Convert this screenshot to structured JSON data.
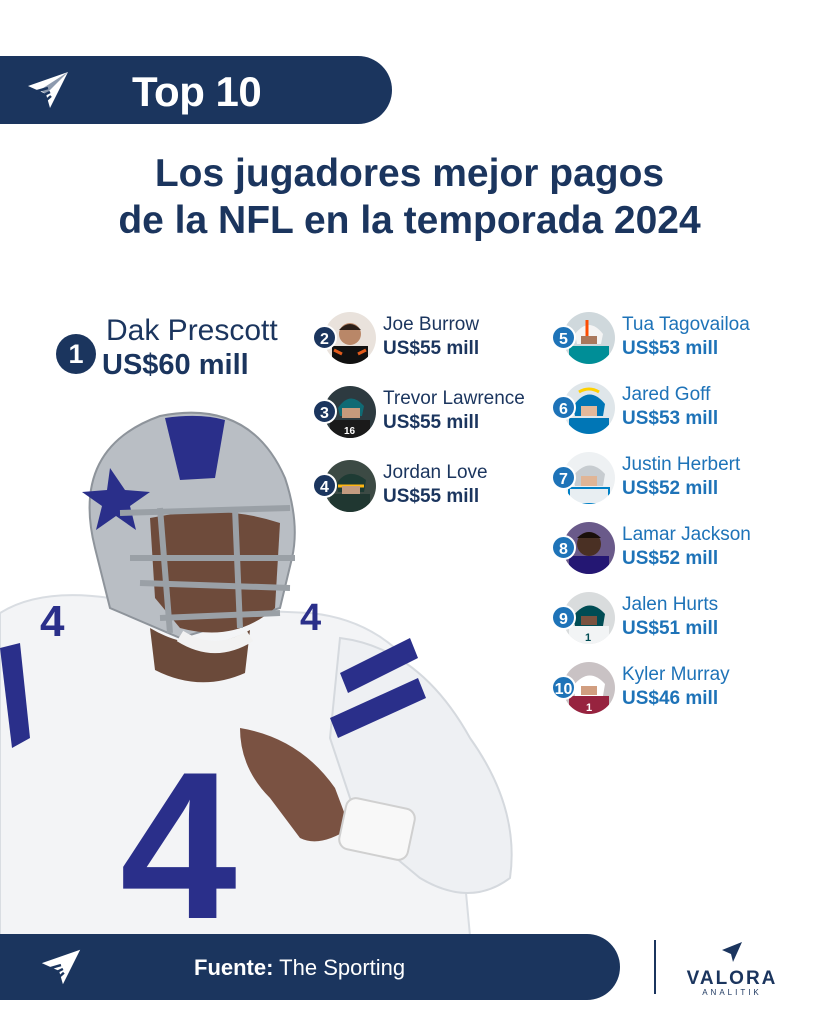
{
  "banner": {
    "title": "Top 10"
  },
  "headline": {
    "line1": "Los jugadores mejor pagos",
    "line2": "de la NFL en la temporada 2024"
  },
  "first": {
    "rank": "1",
    "name": "Dak Prescott",
    "salary": "US$60 mill"
  },
  "players": [
    {
      "rank": "2",
      "name": "Joe Burrow",
      "salary": "US$55 mill",
      "jersey_color": "#111111",
      "accent": "#e25b1c"
    },
    {
      "rank": "3",
      "name": "Trevor Lawrence",
      "salary": "US$55 mill",
      "jersey_color": "#1a1a1a",
      "accent": "#0f6a74"
    },
    {
      "rank": "4",
      "name": "Jordan Love",
      "salary": "US$55 mill",
      "jersey_color": "#203731",
      "accent": "#ffb612"
    },
    {
      "rank": "5",
      "name": "Tua Tagovailoa",
      "salary": "US$53 mill",
      "jersey_color": "#008e97",
      "accent": "#fc4c02"
    },
    {
      "rank": "6",
      "name": "Jared Goff",
      "salary": "US$53 mill",
      "jersey_color": "#0076b6",
      "accent": "#b0b7bc"
    },
    {
      "rank": "7",
      "name": "Justin Herbert",
      "salary": "US$52 mill",
      "jersey_color": "#e8eef2",
      "accent": "#0080c6"
    },
    {
      "rank": "8",
      "name": "Lamar Jackson",
      "salary": "US$52 mill",
      "jersey_color": "#241773",
      "accent": "#9e7c0c"
    },
    {
      "rank": "9",
      "name": "Jalen Hurts",
      "salary": "US$51 mill",
      "jersey_color": "#f2f4f5",
      "accent": "#004c54"
    },
    {
      "rank": "10",
      "name": "Kyler Murray",
      "salary": "US$46 mill",
      "jersey_color": "#97233f",
      "accent": "#ffffff"
    }
  ],
  "footer": {
    "source_label": "Fuente:",
    "source_value": "The Sporting"
  },
  "brand": {
    "name": "VALORA",
    "tagline": "ANALITIK"
  },
  "colors": {
    "navy": "#1b355e",
    "blue": "#1e73b8",
    "cowboys_blue": "#2a2f8a"
  },
  "icons": {
    "banner_logo": "paper-plane-icon",
    "brand_logo": "valora-logo-icon"
  }
}
